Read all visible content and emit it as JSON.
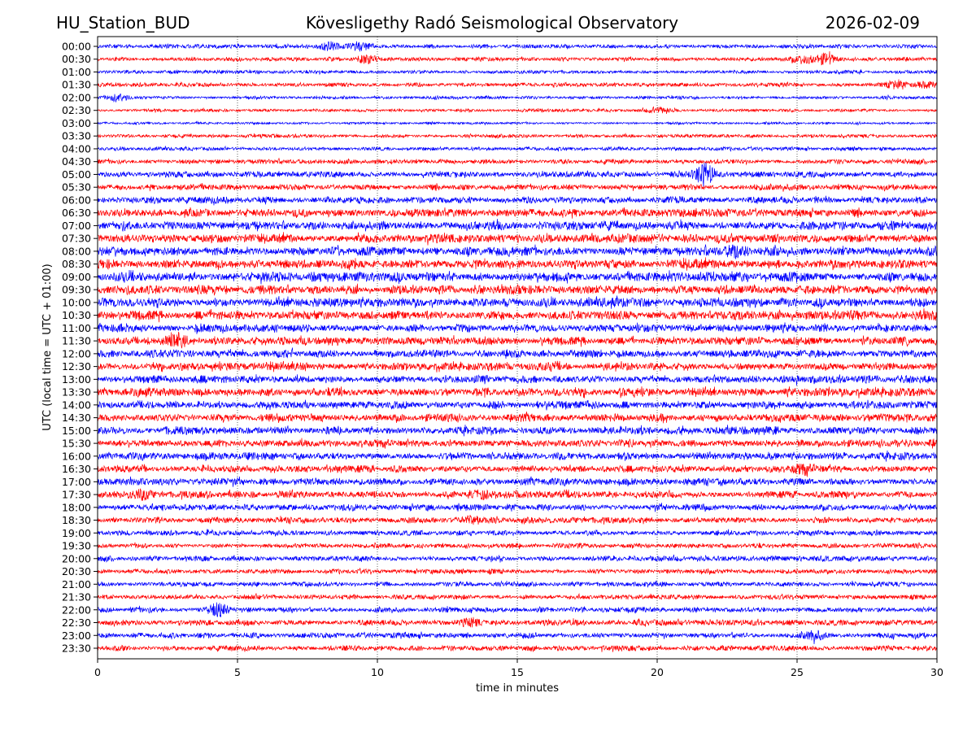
{
  "chart_data": {
    "type": "line",
    "title_left": "HU_Station_BUD",
    "title": "Kövesligethy Radó Seismological Observatory",
    "title_right": "2026-02-09",
    "xlabel": "time in minutes",
    "ylabel": "UTC (local time = UTC + 01:00)",
    "xlim": [
      0,
      30
    ],
    "xticks": [
      "0",
      "5",
      "10",
      "15",
      "20",
      "25",
      "30"
    ],
    "grid": "vertical dotted",
    "colors": [
      "#0000ff",
      "#ff0000"
    ],
    "rows": [
      "00:00",
      "00:30",
      "01:00",
      "01:30",
      "02:00",
      "02:30",
      "03:00",
      "03:30",
      "04:00",
      "04:30",
      "05:00",
      "05:30",
      "06:00",
      "06:30",
      "07:00",
      "07:30",
      "08:00",
      "08:30",
      "09:00",
      "09:30",
      "10:00",
      "10:30",
      "11:00",
      "11:30",
      "12:00",
      "12:30",
      "13:00",
      "13:30",
      "14:00",
      "14:30",
      "15:00",
      "15:30",
      "16:00",
      "16:30",
      "17:00",
      "17:30",
      "18:00",
      "18:30",
      "19:00",
      "19:30",
      "20:00",
      "20:30",
      "21:00",
      "21:30",
      "22:00",
      "22:30",
      "23:00",
      "23:30"
    ],
    "noise_level": [
      2,
      2,
      1.8,
      2,
      1.6,
      1.6,
      1.2,
      1.8,
      1.8,
      2.4,
      3,
      3,
      3.6,
      4,
      4.5,
      4.5,
      4.5,
      4.8,
      4.8,
      4.6,
      4.6,
      4.8,
      4,
      4,
      4,
      4,
      4,
      4.2,
      4,
      4,
      4,
      4,
      3.8,
      3.5,
      3.5,
      3.5,
      3.2,
      3,
      2.6,
      2.4,
      2.6,
      2.4,
      2.4,
      2.4,
      2.6,
      3,
      2.8,
      2.6
    ],
    "events": [
      {
        "row": 0,
        "minute": 8.3,
        "amp": 5
      },
      {
        "row": 0,
        "minute": 9.4,
        "amp": 4
      },
      {
        "row": 1,
        "minute": 9.6,
        "amp": 5
      },
      {
        "row": 1,
        "minute": 25.2,
        "amp": 4
      },
      {
        "row": 1,
        "minute": 26.0,
        "amp": 6
      },
      {
        "row": 3,
        "minute": 28.5,
        "amp": 4
      },
      {
        "row": 3,
        "minute": 29.6,
        "amp": 3
      },
      {
        "row": 4,
        "minute": 0.8,
        "amp": 4
      },
      {
        "row": 5,
        "minute": 20.0,
        "amp": 3
      },
      {
        "row": 10,
        "minute": 21.7,
        "amp": 12
      },
      {
        "row": 16,
        "minute": 22.8,
        "amp": 5
      },
      {
        "row": 23,
        "minute": 2.9,
        "amp": 7
      },
      {
        "row": 33,
        "minute": 25.2,
        "amp": 5
      },
      {
        "row": 35,
        "minute": 1.6,
        "amp": 4
      },
      {
        "row": 35,
        "minute": 13.7,
        "amp": 4
      },
      {
        "row": 37,
        "minute": 13.5,
        "amp": 4
      },
      {
        "row": 44,
        "minute": 4.3,
        "amp": 7
      },
      {
        "row": 45,
        "minute": 13.3,
        "amp": 4
      },
      {
        "row": 46,
        "minute": 25.6,
        "amp": 4
      }
    ]
  }
}
